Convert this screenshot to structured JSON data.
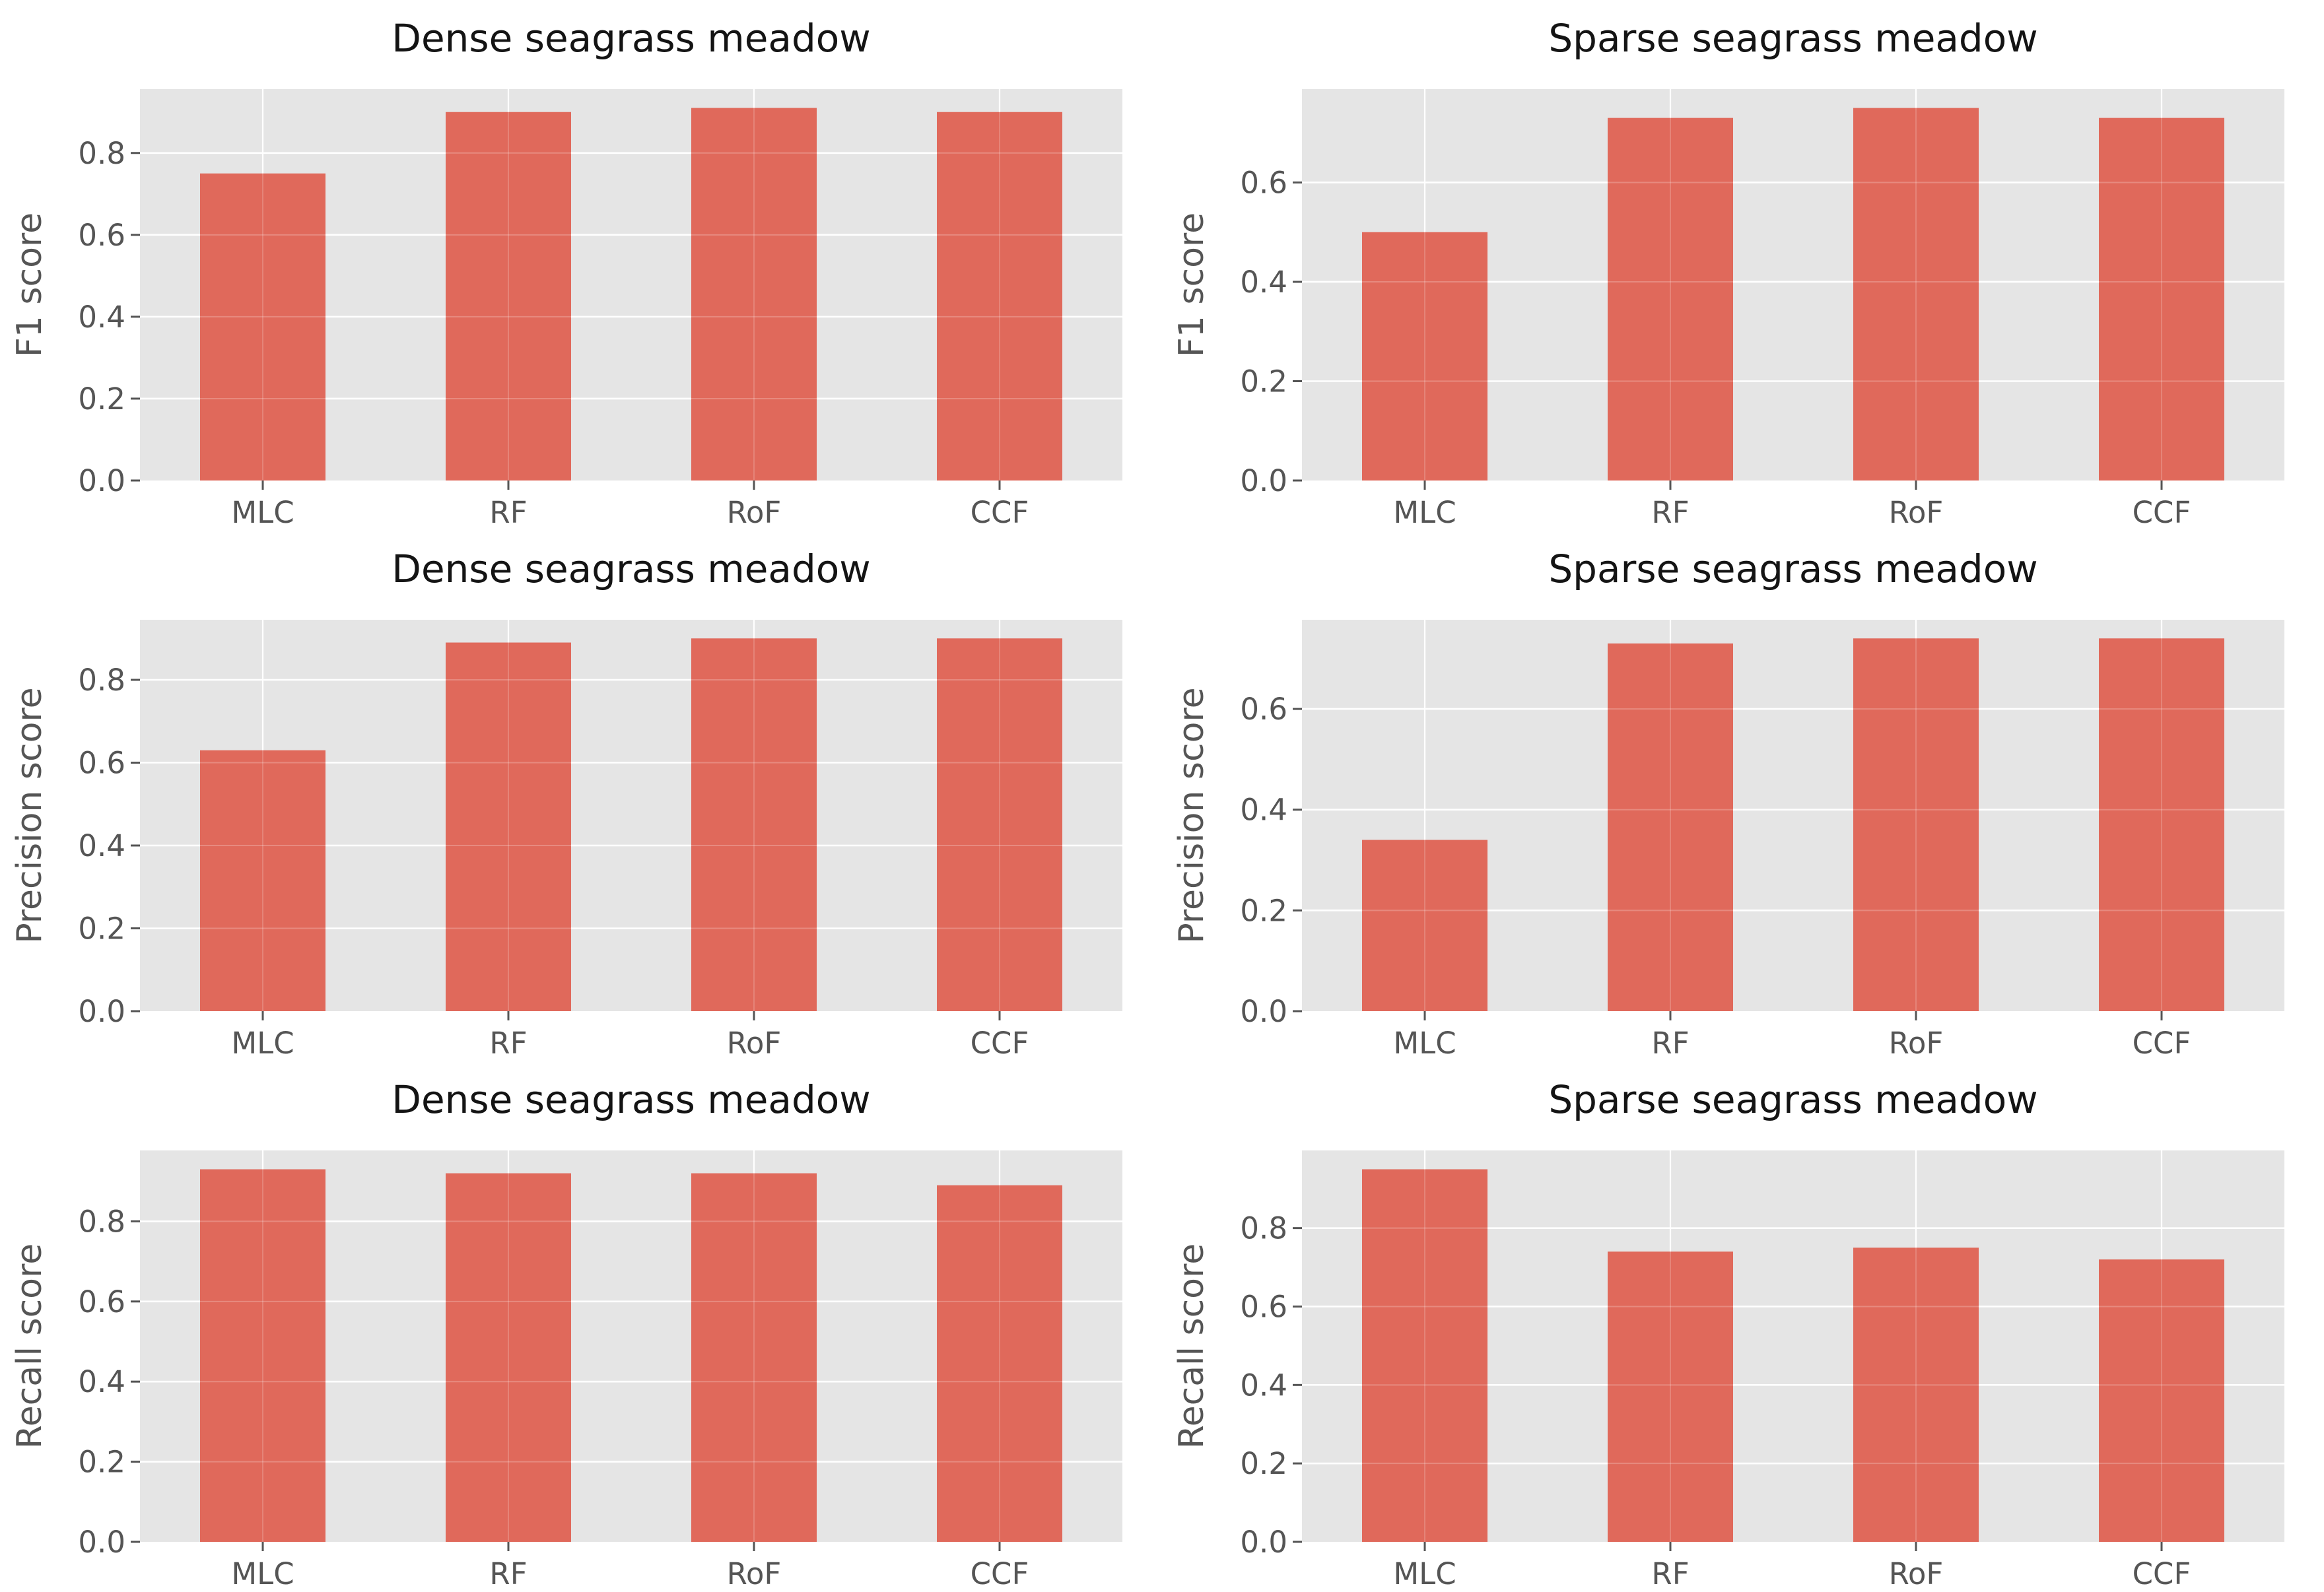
{
  "figure": {
    "description": "Classifier performance bar charts for seagrass meadow mapping",
    "rows": 3,
    "cols": 2
  },
  "style": {
    "page_bg": "#ffffff",
    "panel_bg": "#e5e5e5",
    "grid_color": "#ffffff",
    "bar_color": "#e0695b",
    "tick_text_color": "#555555",
    "title_color": "#141414"
  },
  "chart_data": [
    {
      "type": "bar",
      "title": "Dense seagrass meadow",
      "metric": "F1",
      "meadow": "Dense",
      "xlabel": "",
      "ylabel": "F1 score",
      "categories": [
        "MLC",
        "RF",
        "RoF",
        "CCF"
      ],
      "values": [
        0.75,
        0.9,
        0.91,
        0.9
      ],
      "ylim": [
        0,
        0.956
      ],
      "yticks": [
        0.0,
        0.2,
        0.4,
        0.6,
        0.8
      ],
      "ytick_labels": [
        "0.0",
        "0.2",
        "0.4",
        "0.6",
        "0.8"
      ],
      "grid": true,
      "legend": "none"
    },
    {
      "type": "bar",
      "title": "Sparse seagrass meadow",
      "metric": "F1",
      "meadow": "Sparse",
      "xlabel": "",
      "ylabel": "F1 score",
      "categories": [
        "MLC",
        "RF",
        "RoF",
        "CCF"
      ],
      "values": [
        0.5,
        0.73,
        0.75,
        0.73
      ],
      "ylim": [
        0,
        0.788
      ],
      "yticks": [
        0.0,
        0.2,
        0.4,
        0.6
      ],
      "ytick_labels": [
        "0.0",
        "0.2",
        "0.4",
        "0.6"
      ],
      "grid": true,
      "legend": "none"
    },
    {
      "type": "bar",
      "title": "Dense seagrass meadow",
      "metric": "Precision",
      "meadow": "Dense",
      "xlabel": "",
      "ylabel": "Precision score",
      "categories": [
        "MLC",
        "RF",
        "RoF",
        "CCF"
      ],
      "values": [
        0.63,
        0.89,
        0.9,
        0.9
      ],
      "ylim": [
        0,
        0.945
      ],
      "yticks": [
        0.0,
        0.2,
        0.4,
        0.6,
        0.8
      ],
      "ytick_labels": [
        "0.0",
        "0.2",
        "0.4",
        "0.6",
        "0.8"
      ],
      "grid": true,
      "legend": "none"
    },
    {
      "type": "bar",
      "title": "Sparse seagrass meadow",
      "metric": "Precision",
      "meadow": "Sparse",
      "xlabel": "",
      "ylabel": "Precision score",
      "categories": [
        "MLC",
        "RF",
        "RoF",
        "CCF"
      ],
      "values": [
        0.34,
        0.73,
        0.74,
        0.74
      ],
      "ylim": [
        0,
        0.777
      ],
      "yticks": [
        0.0,
        0.2,
        0.4,
        0.6
      ],
      "ytick_labels": [
        "0.0",
        "0.2",
        "0.4",
        "0.6"
      ],
      "grid": true,
      "legend": "none"
    },
    {
      "type": "bar",
      "title": "Dense seagrass meadow",
      "metric": "Recall",
      "meadow": "Dense",
      "xlabel": "",
      "ylabel": "Recall score",
      "categories": [
        "MLC",
        "RF",
        "RoF",
        "CCF"
      ],
      "values": [
        0.93,
        0.92,
        0.92,
        0.89
      ],
      "ylim": [
        0,
        0.977
      ],
      "yticks": [
        0.0,
        0.2,
        0.4,
        0.6,
        0.8
      ],
      "ytick_labels": [
        "0.0",
        "0.2",
        "0.4",
        "0.6",
        "0.8"
      ],
      "grid": true,
      "legend": "none"
    },
    {
      "type": "bar",
      "title": "Sparse seagrass meadow",
      "metric": "Recall",
      "meadow": "Sparse",
      "xlabel": "",
      "ylabel": "Recall score",
      "categories": [
        "MLC",
        "RF",
        "RoF",
        "CCF"
      ],
      "values": [
        0.95,
        0.74,
        0.75,
        0.72
      ],
      "ylim": [
        0,
        0.998
      ],
      "yticks": [
        0.0,
        0.2,
        0.4,
        0.6,
        0.8
      ],
      "ytick_labels": [
        "0.0",
        "0.2",
        "0.4",
        "0.6",
        "0.8"
      ],
      "grid": true,
      "legend": "none"
    }
  ]
}
